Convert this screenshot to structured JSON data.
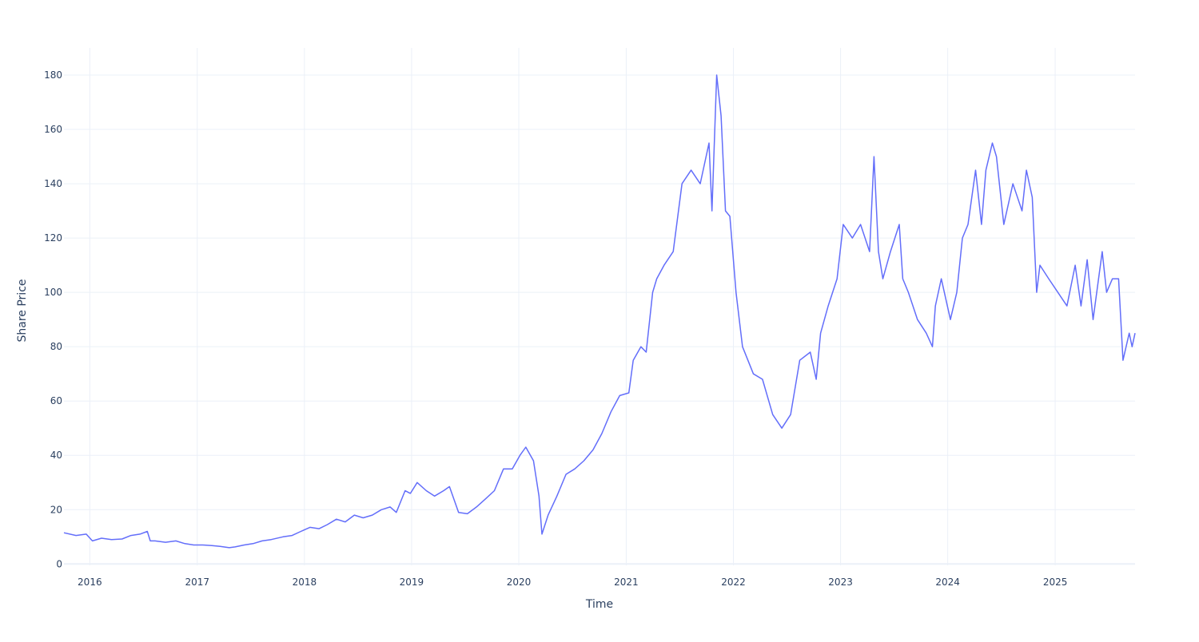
{
  "chart_data": {
    "type": "line",
    "title": "",
    "xlabel": "Time",
    "ylabel": "Share Price",
    "xlim": [
      "2015-10-05",
      "2025-09-30"
    ],
    "ylim": [
      -0.5,
      190
    ],
    "grid": true,
    "legend": "none",
    "x_ticks": [
      "2016",
      "2017",
      "2018",
      "2019",
      "2020",
      "2021",
      "2022",
      "2023",
      "2024",
      "2025"
    ],
    "y_ticks": [
      "0",
      "20",
      "40",
      "60",
      "80",
      "100",
      "120",
      "140",
      "160",
      "180"
    ],
    "colors": {
      "line": "#636efa",
      "grid": "#ebf0f8",
      "zeroline": "#ebf0f8",
      "text": "#2a3f5f"
    },
    "series": [
      {
        "x": [
          "2015-10-05",
          "2015-11-15",
          "2015-12-20",
          "2016-01-10",
          "2016-02-10",
          "2016-03-15",
          "2016-04-20",
          "2016-05-20",
          "2016-06-20",
          "2016-07-15",
          "2016-07-25",
          "2016-08-10",
          "2016-09-15",
          "2016-10-20",
          "2016-11-20",
          "2016-12-20",
          "2017-01-20",
          "2017-02-20",
          "2017-03-20",
          "2017-04-20",
          "2017-05-10",
          "2017-06-10",
          "2017-07-10",
          "2017-08-10",
          "2017-09-10",
          "2017-10-20",
          "2017-11-20",
          "2017-12-20",
          "2018-01-20",
          "2018-02-20",
          "2018-03-20",
          "2018-04-20",
          "2018-05-20",
          "2018-06-20",
          "2018-07-20",
          "2018-08-20",
          "2018-09-20",
          "2018-10-20",
          "2018-11-10",
          "2018-12-10",
          "2018-12-28",
          "2019-01-20",
          "2019-02-20",
          "2019-03-20",
          "2019-04-20",
          "2019-05-10",
          "2019-06-10",
          "2019-07-10",
          "2019-08-10",
          "2019-09-10",
          "2019-10-10",
          "2019-11-10",
          "2019-12-10",
          "2020-01-05",
          "2020-01-25",
          "2020-02-20",
          "2020-03-10",
          "2020-03-20",
          "2020-04-10",
          "2020-05-10",
          "2020-06-10",
          "2020-07-10",
          "2020-08-10",
          "2020-09-10",
          "2020-10-10",
          "2020-11-10",
          "2020-12-10",
          "2021-01-10",
          "2021-01-25",
          "2021-02-20",
          "2021-03-10",
          "2021-04-01",
          "2021-04-15",
          "2021-05-10",
          "2021-06-10",
          "2021-07-10",
          "2021-08-10",
          "2021-09-10",
          "2021-10-10",
          "2021-10-20",
          "2021-11-05",
          "2021-11-20",
          "2021-12-05",
          "2021-12-20",
          "2022-01-10",
          "2022-02-01",
          "2022-03-10",
          "2022-04-10",
          "2022-05-15",
          "2022-06-15",
          "2022-07-15",
          "2022-08-15",
          "2022-09-20",
          "2022-10-10",
          "2022-10-25",
          "2022-11-20",
          "2022-12-20",
          "2023-01-10",
          "2023-02-10",
          "2023-03-10",
          "2023-04-10",
          "2023-04-25",
          "2023-05-10",
          "2023-05-25",
          "2023-06-20",
          "2023-07-20",
          "2023-08-01",
          "2023-08-20",
          "2023-09-20",
          "2023-10-20",
          "2023-11-10",
          "2023-11-20",
          "2023-12-10",
          "2024-01-10",
          "2024-02-01",
          "2024-02-20",
          "2024-03-10",
          "2024-04-05",
          "2024-04-25",
          "2024-05-10",
          "2024-06-01",
          "2024-06-15",
          "2024-07-10",
          "2024-08-10",
          "2024-09-10",
          "2024-09-25",
          "2024-10-15",
          "2024-10-30",
          "2024-11-10",
          "2024-12-10",
          "2025-01-10",
          "2025-02-10",
          "2025-03-10",
          "2025-03-30",
          "2025-04-20",
          "2025-05-10",
          "2025-06-10",
          "2025-06-25",
          "2025-07-15",
          "2025-08-05",
          "2025-08-20",
          "2025-09-10",
          "2025-09-20",
          "2025-09-30"
        ],
        "y": [
          11.5,
          10.5,
          11.0,
          8.5,
          9.5,
          9.0,
          9.2,
          10.5,
          11.0,
          12.0,
          8.5,
          8.5,
          8.0,
          8.5,
          7.5,
          7.0,
          7.0,
          6.8,
          6.5,
          6.0,
          6.3,
          7.0,
          7.5,
          8.5,
          9.0,
          10.0,
          10.5,
          12.0,
          13.5,
          13.0,
          14.5,
          16.5,
          15.5,
          18.0,
          17.0,
          18.0,
          20.0,
          21.0,
          19.0,
          27.0,
          26.0,
          30.0,
          27.0,
          25.0,
          27.0,
          28.5,
          19.0,
          18.5,
          21.0,
          24.0,
          27.0,
          35.0,
          35.0,
          40.0,
          43.0,
          38.0,
          25.0,
          11.0,
          18.0,
          25.0,
          33.0,
          35.0,
          38.0,
          42.0,
          48.0,
          56.0,
          62.0,
          63.0,
          75.0,
          80.0,
          78.0,
          100.0,
          105.0,
          110.0,
          115.0,
          140.0,
          145.0,
          140.0,
          155.0,
          130.0,
          180.0,
          165.0,
          130.0,
          128.0,
          100.0,
          80.0,
          70.0,
          68.0,
          55.0,
          50.0,
          55.0,
          75.0,
          78.0,
          68.0,
          85.0,
          95.0,
          105.0,
          125.0,
          120.0,
          125.0,
          115.0,
          150.0,
          115.0,
          105.0,
          115.0,
          125.0,
          105.0,
          100.0,
          90.0,
          85.0,
          80.0,
          95.0,
          105.0,
          90.0,
          100.0,
          120.0,
          125.0,
          145.0,
          125.0,
          145.0,
          155.0,
          150.0,
          125.0,
          140.0,
          130.0,
          145.0,
          135.0,
          100.0,
          110.0,
          105.0,
          100.0,
          95.0,
          110.0,
          95.0,
          112.0,
          90.0,
          115.0,
          100.0,
          105.0,
          105.0,
          75.0,
          85.0,
          80.0,
          85.0
        ]
      }
    ]
  }
}
